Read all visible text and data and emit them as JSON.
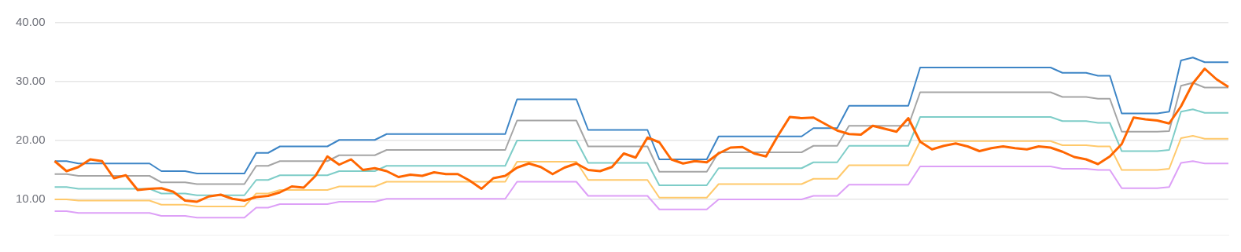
{
  "chart_data": {
    "type": "line",
    "categories": [
      null,
      null,
      null,
      null,
      null,
      null,
      null,
      null,
      null,
      null,
      null,
      null,
      null,
      null,
      null,
      null,
      null,
      null,
      null,
      null,
      null,
      null,
      null,
      null,
      null,
      null,
      null,
      null,
      null,
      null,
      null,
      null,
      null,
      null,
      null,
      null,
      null,
      null,
      null,
      null,
      null,
      null,
      null,
      null,
      null,
      null,
      null,
      null,
      null,
      null,
      null,
      null,
      null,
      null,
      null,
      null,
      null,
      null,
      null,
      null,
      null,
      null,
      null,
      null,
      null,
      null,
      null,
      null,
      null,
      null,
      null,
      null,
      null,
      null,
      null,
      null,
      null,
      null,
      null,
      null,
      null,
      null,
      null,
      null,
      null,
      null,
      null,
      null,
      null,
      null,
      null,
      null,
      null,
      null,
      null,
      null,
      null,
      null,
      null,
      null
    ],
    "series": [
      {
        "color": "#3d85c6",
        "values": [
          16.5,
          16.5,
          16.1,
          16.1,
          16.1,
          16.1,
          16.1,
          16.1,
          16.1,
          14.8,
          14.8,
          14.8,
          14.4,
          14.4,
          14.4,
          14.4,
          14.4,
          17.9,
          17.9,
          19.0,
          19.0,
          19.0,
          19.0,
          19.0,
          20.1,
          20.1,
          20.1,
          20.1,
          21.1,
          21.1,
          21.1,
          21.1,
          21.1,
          21.1,
          21.1,
          21.1,
          21.1,
          21.1,
          21.1,
          27.0,
          27.0,
          27.0,
          27.0,
          27.0,
          27.0,
          21.8,
          21.8,
          21.8,
          21.8,
          21.8,
          21.8,
          16.8,
          16.8,
          16.8,
          16.8,
          16.8,
          20.7,
          20.7,
          20.7,
          20.7,
          20.7,
          20.7,
          20.7,
          20.7,
          22.1,
          22.1,
          22.1,
          25.9,
          25.9,
          25.9,
          25.9,
          25.9,
          25.9,
          32.4,
          32.4,
          32.4,
          32.4,
          32.4,
          32.4,
          32.4,
          32.4,
          32.4,
          32.4,
          32.4,
          32.4,
          31.5,
          31.5,
          31.5,
          31.0,
          31.0,
          24.6,
          24.6,
          24.6,
          24.6,
          24.9,
          33.6,
          34.1,
          33.3,
          33.3,
          33.3
        ]
      },
      {
        "color": "#a5a5a5",
        "values": [
          14.3,
          14.3,
          14.0,
          14.0,
          14.0,
          14.0,
          14.0,
          14.0,
          14.0,
          12.9,
          12.9,
          12.9,
          12.6,
          12.6,
          12.6,
          12.6,
          12.6,
          15.7,
          15.7,
          16.5,
          16.5,
          16.5,
          16.5,
          16.5,
          17.5,
          17.5,
          17.5,
          17.5,
          18.4,
          18.4,
          18.4,
          18.4,
          18.4,
          18.4,
          18.4,
          18.4,
          18.4,
          18.4,
          18.4,
          23.4,
          23.4,
          23.4,
          23.4,
          23.4,
          23.4,
          19.0,
          19.0,
          19.0,
          19.0,
          19.0,
          19.0,
          14.7,
          14.7,
          14.7,
          14.7,
          14.7,
          18.0,
          18.0,
          18.0,
          18.0,
          18.0,
          18.0,
          18.0,
          18.0,
          19.1,
          19.1,
          19.1,
          22.5,
          22.5,
          22.5,
          22.5,
          22.5,
          22.5,
          28.2,
          28.2,
          28.2,
          28.2,
          28.2,
          28.2,
          28.2,
          28.2,
          28.2,
          28.2,
          28.2,
          28.2,
          27.4,
          27.4,
          27.4,
          27.1,
          27.1,
          21.5,
          21.5,
          21.5,
          21.5,
          21.6,
          29.3,
          29.8,
          29.0,
          29.0,
          29.0
        ]
      },
      {
        "color": "#7ecdc8",
        "values": [
          12.1,
          12.1,
          11.8,
          11.8,
          11.8,
          11.8,
          11.8,
          11.8,
          11.8,
          11.0,
          11.0,
          11.0,
          10.7,
          10.7,
          10.7,
          10.7,
          10.7,
          13.3,
          13.3,
          14.1,
          14.1,
          14.1,
          14.1,
          14.1,
          14.8,
          14.8,
          14.8,
          14.8,
          15.7,
          15.7,
          15.7,
          15.7,
          15.7,
          15.7,
          15.7,
          15.7,
          15.7,
          15.7,
          15.7,
          20.0,
          20.0,
          20.0,
          20.0,
          20.0,
          20.0,
          16.2,
          16.2,
          16.2,
          16.2,
          16.2,
          16.2,
          12.4,
          12.4,
          12.4,
          12.4,
          12.4,
          15.3,
          15.3,
          15.3,
          15.3,
          15.3,
          15.3,
          15.3,
          15.3,
          16.3,
          16.3,
          16.3,
          19.1,
          19.1,
          19.1,
          19.1,
          19.1,
          19.1,
          24.0,
          24.0,
          24.0,
          24.0,
          24.0,
          24.0,
          24.0,
          24.0,
          24.0,
          24.0,
          24.0,
          24.0,
          23.3,
          23.3,
          23.3,
          23.0,
          23.0,
          18.2,
          18.2,
          18.2,
          18.2,
          18.4,
          24.9,
          25.3,
          24.7,
          24.7,
          24.7
        ]
      },
      {
        "color": "#ffc96b",
        "values": [
          10.0,
          10.0,
          9.8,
          9.8,
          9.8,
          9.8,
          9.8,
          9.8,
          9.8,
          9.1,
          9.1,
          9.1,
          8.8,
          8.8,
          8.8,
          8.8,
          8.8,
          11.0,
          11.0,
          11.6,
          11.6,
          11.6,
          11.6,
          11.6,
          12.2,
          12.2,
          12.2,
          12.2,
          13.0,
          13.0,
          13.0,
          13.0,
          13.0,
          13.0,
          13.0,
          13.0,
          13.0,
          13.0,
          13.0,
          16.4,
          16.4,
          16.4,
          16.4,
          16.4,
          16.4,
          13.3,
          13.3,
          13.3,
          13.3,
          13.3,
          13.3,
          10.3,
          10.3,
          10.3,
          10.3,
          10.3,
          12.6,
          12.6,
          12.6,
          12.6,
          12.6,
          12.6,
          12.6,
          12.6,
          13.5,
          13.5,
          13.5,
          15.8,
          15.8,
          15.8,
          15.8,
          15.8,
          15.8,
          19.9,
          19.9,
          19.9,
          19.9,
          19.9,
          19.9,
          19.9,
          19.9,
          19.9,
          19.9,
          19.9,
          19.9,
          19.2,
          19.2,
          19.2,
          19.0,
          19.0,
          15.0,
          15.0,
          15.0,
          15.0,
          15.2,
          20.4,
          20.8,
          20.3,
          20.3,
          20.3
        ]
      },
      {
        "color": "#dda0f7",
        "values": [
          8.0,
          8.0,
          7.7,
          7.7,
          7.7,
          7.7,
          7.7,
          7.7,
          7.7,
          7.2,
          7.2,
          7.2,
          6.9,
          6.9,
          6.9,
          6.9,
          6.9,
          8.6,
          8.6,
          9.2,
          9.2,
          9.2,
          9.2,
          9.2,
          9.6,
          9.6,
          9.6,
          9.6,
          10.1,
          10.1,
          10.1,
          10.1,
          10.1,
          10.1,
          10.1,
          10.1,
          10.1,
          10.1,
          10.1,
          13.0,
          13.0,
          13.0,
          13.0,
          13.0,
          13.0,
          10.6,
          10.6,
          10.6,
          10.6,
          10.6,
          10.6,
          8.3,
          8.3,
          8.3,
          8.3,
          8.3,
          10.0,
          10.0,
          10.0,
          10.0,
          10.0,
          10.0,
          10.0,
          10.0,
          10.6,
          10.6,
          10.6,
          12.5,
          12.5,
          12.5,
          12.5,
          12.5,
          12.5,
          15.6,
          15.6,
          15.6,
          15.6,
          15.6,
          15.6,
          15.6,
          15.6,
          15.6,
          15.6,
          15.6,
          15.6,
          15.2,
          15.2,
          15.2,
          15.0,
          15.0,
          11.9,
          11.9,
          11.9,
          11.9,
          12.1,
          16.2,
          16.5,
          16.1,
          16.1,
          16.1
        ]
      },
      {
        "color": "#ff6600",
        "values": [
          16.5,
          14.8,
          15.5,
          16.8,
          16.5,
          13.6,
          14.1,
          11.6,
          11.8,
          11.9,
          11.3,
          9.8,
          9.6,
          10.5,
          10.8,
          10.1,
          9.8,
          10.4,
          10.6,
          11.2,
          12.2,
          12.0,
          14.0,
          17.3,
          15.9,
          16.8,
          15.0,
          15.3,
          14.8,
          13.8,
          14.2,
          14.0,
          14.6,
          14.3,
          14.3,
          13.2,
          11.8,
          13.6,
          14.0,
          15.4,
          16.1,
          15.5,
          14.3,
          15.4,
          16.1,
          15.0,
          14.8,
          15.5,
          17.8,
          17.1,
          20.5,
          19.7,
          16.8,
          16.1,
          16.5,
          16.3,
          17.8,
          18.8,
          18.9,
          17.8,
          17.3,
          20.8,
          24.0,
          23.8,
          23.9,
          22.8,
          21.7,
          21.1,
          21.0,
          22.5,
          22.0,
          21.5,
          23.8,
          19.8,
          18.5,
          19.1,
          19.5,
          19.0,
          18.2,
          18.7,
          19.0,
          18.7,
          18.5,
          19.0,
          18.8,
          18.1,
          17.2,
          16.8,
          16.0,
          17.3,
          19.4,
          23.9,
          23.6,
          23.4,
          22.9,
          25.8,
          29.7,
          32.2,
          30.4,
          29.1
        ]
      }
    ],
    "ylim": [
      4,
      40
    ],
    "yticks": [
      {
        "value": 10,
        "label": "10.00"
      },
      {
        "value": 20,
        "label": "20.00"
      },
      {
        "value": 30,
        "label": "30.00"
      },
      {
        "value": 40,
        "label": "40.00"
      }
    ],
    "tick_labels": "y",
    "grid": "y",
    "legend": false,
    "marker": "none",
    "line_style": "solid"
  }
}
